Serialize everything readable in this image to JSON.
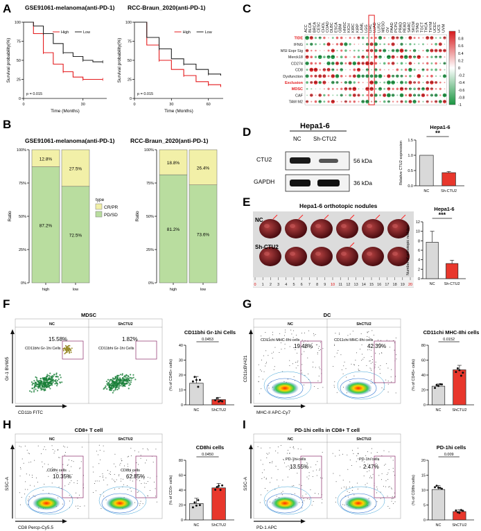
{
  "panels": {
    "A": {
      "letter": "A",
      "left_title": "GSE91061-melanoma(anti-PD-1)",
      "right_title": "RCC-Braun_2020(anti-PD-1)",
      "ylabel": "Survival probability(%)",
      "xlabel": "Time (Months)",
      "pval": "p = 0.015",
      "legend_high": "High",
      "legend_low": "Low",
      "left_yticks": [
        "100",
        "75",
        "50",
        "25",
        "0"
      ],
      "left_xticks": [
        "0",
        "30"
      ],
      "right_yticks": [
        "100",
        "75",
        "50",
        "25",
        "0"
      ],
      "right_xticks": [
        "0",
        "30",
        "60"
      ]
    },
    "B": {
      "letter": "B",
      "left_title": "GSE91061-melanoma(anti-PD-1)",
      "right_title": "RCC-Braun_2020(anti-PD-1)",
      "ylabel": "Ratio",
      "yticks": [
        "100%",
        "75%",
        "50%",
        "25%",
        "0%"
      ],
      "legend_title": "type",
      "legend_items": [
        "CR/PR",
        "PD/SD"
      ],
      "xcats": [
        "high",
        "low"
      ],
      "left_top": [
        "12.8%",
        "27.5%"
      ],
      "left_bottom": [
        "87.2%",
        "72.5%"
      ],
      "right_top": [
        "18.8%",
        "26.4%"
      ],
      "right_bottom": [
        "81.2%",
        "73.6%"
      ]
    },
    "C": {
      "letter": "C",
      "columns": [
        "ACC",
        "BLCA",
        "BRCA",
        "CESC",
        "CHOL",
        "COAD",
        "DLBC",
        "ESCA",
        "GBM",
        "HNSC",
        "KICH",
        "KIRC",
        "KIRP",
        "LAML",
        "LGG",
        "LIHC",
        "LUAD",
        "LUSC",
        "MESO",
        "OV",
        "PAAD",
        "PCPG",
        "PRAD",
        "READ",
        "SARC",
        "SKCM",
        "STAD",
        "TGCT",
        "THCA",
        "THYM",
        "UCEC",
        "UCS",
        "UVM"
      ],
      "rows": [
        "TIDE",
        "IFNG",
        "MSI Expr Sig",
        "Merck18",
        "CD274",
        "CD8",
        "Dysfunction",
        "Exclusion",
        "MDSC",
        "CAF",
        "TAM M2"
      ],
      "scale": [
        "1",
        "0.8",
        "0.6",
        "0.4",
        "0.2",
        "0",
        "-0.2",
        "-0.4",
        "-0.6",
        "-0.8",
        "-1"
      ],
      "colors": {
        "pos": "#d7191c",
        "neg": "#1a9641",
        "highlight": "#e31a1c"
      }
    },
    "D": {
      "letter": "D",
      "cell_line": "Hepa1-6",
      "lanes": [
        "NC",
        "Sh-CTU2"
      ],
      "bands": [
        "CTU2",
        "GAPDH"
      ],
      "kdas": [
        "56 kDa",
        "36 kDa"
      ],
      "bar_title": "Hepa1-6",
      "ylabel": "Relative CTU2 expression",
      "yticks": [
        "0.0",
        "0.5",
        "1.0",
        "1.5"
      ],
      "xcats": [
        "NC",
        "Sh-CTU2"
      ],
      "sig": "**"
    },
    "E": {
      "letter": "E",
      "photo_title": "Hepa1-6 orthotopic nodules",
      "row_labels": [
        "NC",
        "Sh-CTU2"
      ],
      "ruler": [
        "0",
        "1",
        "2",
        "3",
        "4",
        "5",
        "6",
        "7",
        "8",
        "9",
        "10",
        "11",
        "12",
        "13",
        "14",
        "15",
        "16",
        "17",
        "18",
        "19",
        "20"
      ],
      "bar_title": "Hepa1-6",
      "ylabel": "Number of orthotopic nodules",
      "yticks": [
        "0",
        "2",
        "4",
        "6",
        "8",
        "10",
        "12"
      ],
      "xcats": [
        "NC",
        "Sh-CTU2"
      ],
      "sig": "***"
    },
    "F": {
      "letter": "F",
      "header": "MDSC",
      "groups": [
        "NC",
        "ShCTU2"
      ],
      "pcts": [
        "15.58%",
        "1.82%"
      ],
      "gate": "CD11b⁺ʰⁱ Gr-1ʰⁱ Cells",
      "gate_label": "CD11bhi Gr-1hi Cells",
      "yaxis": "Gr-1 BV605",
      "xaxis": "CD11b FITC",
      "bar_title": "CD11bhi Gr-1hi Cells",
      "ylabel": "(% of CD45+ cells)",
      "yticks": [
        "0",
        "10",
        "20",
        "30",
        "40"
      ],
      "pval": "0.0453",
      "xcats": [
        "NC",
        "ShCTU2"
      ]
    },
    "G": {
      "letter": "G",
      "header": "DC",
      "groups": [
        "NC",
        "ShCTU2"
      ],
      "pcts": [
        "19.48%",
        "42.39%"
      ],
      "gate_label": "CD11chi MHC-IIhi cells",
      "yaxis": "CD11cBV421",
      "xaxis": "MHC-II APC-Cy7",
      "bar_title": "CD11chi MHC-IIhi cells",
      "ylabel": "(% of CD45+ cells)",
      "yticks": [
        "0",
        "20",
        "40",
        "60",
        "80"
      ],
      "pval": "0.0152",
      "xcats": [
        "NC",
        "ShCTU2"
      ]
    },
    "H": {
      "letter": "H",
      "header": "CD8+ T cell",
      "groups": [
        "NC",
        "ShCTU2"
      ],
      "pcts": [
        "10.35%",
        "62.85%"
      ],
      "gate_label": "CD8hi cells",
      "yaxis": "SSC-A",
      "xaxis": "CD8 Percp-Cy5.5",
      "bar_title": "CD8hi cells",
      "ylabel": "(% of CD3+ cells)",
      "yticks": [
        "0",
        "20",
        "40",
        "60",
        "80"
      ],
      "pval": "0.0450",
      "xcats": [
        "NC",
        "ShCTU2"
      ]
    },
    "I": {
      "letter": "I",
      "header": "PD-1hi cells in CD8+ T cell",
      "groups": [
        "NC",
        "ShCTU2"
      ],
      "pcts": [
        "13.55%",
        "2.47%"
      ],
      "gate_label": "PD-1hi cells",
      "yaxis": "SSC-A",
      "xaxis": "PD-1 APC",
      "bar_title": "PD-1hi cells",
      "ylabel": "(% of CD8hi cells)",
      "yticks": [
        "0",
        "5",
        "10",
        "15",
        "20"
      ],
      "pval": "0.009",
      "xcats": [
        "NC",
        "ShCTU2"
      ]
    }
  },
  "chart_data": [
    {
      "type": "bar",
      "panel": "D",
      "title": "Hepa1-6",
      "categories": [
        "NC",
        "Sh-CTU2"
      ],
      "values": [
        1.0,
        0.43
      ],
      "errors": [
        0,
        0.04
      ],
      "ylabel": "Relative CTU2 expression",
      "ylim": [
        0,
        1.5
      ]
    },
    {
      "type": "bar",
      "panel": "E",
      "title": "Hepa1-6",
      "categories": [
        "NC",
        "Sh-CTU2"
      ],
      "values": [
        7.7,
        3.2
      ],
      "errors": [
        2.3,
        0.7
      ],
      "ylabel": "Number of orthotopic nodules",
      "ylim": [
        0,
        12
      ]
    },
    {
      "type": "bar",
      "panel": "F",
      "title": "CD11bhi Gr-1hi Cells",
      "categories": [
        "NC",
        "ShCTU2"
      ],
      "values": [
        14.5,
        3.5
      ],
      "errors": [
        4.5,
        1.5
      ],
      "ylabel": "(% of CD45+ cells)",
      "ylim": [
        0,
        40
      ]
    },
    {
      "type": "bar",
      "panel": "G",
      "title": "CD11chi MHC-IIhi cells",
      "categories": [
        "NC",
        "ShCTU2"
      ],
      "values": [
        25,
        47
      ],
      "errors": [
        3,
        6
      ],
      "ylabel": "(% of CD45+ cells)",
      "ylim": [
        0,
        80
      ]
    },
    {
      "type": "bar",
      "panel": "H",
      "title": "CD8hi cells",
      "categories": [
        "NC",
        "ShCTU2"
      ],
      "values": [
        22,
        43
      ],
      "errors": [
        7,
        6
      ],
      "ylabel": "(% of CD3+ cells)",
      "ylim": [
        0,
        80
      ]
    },
    {
      "type": "bar",
      "panel": "I",
      "title": "PD-1hi cells",
      "categories": [
        "NC",
        "ShCTU2"
      ],
      "values": [
        10.2,
        2.8
      ],
      "errors": [
        1.3,
        0.6
      ],
      "ylabel": "(% of CD8hi cells)",
      "ylim": [
        0,
        20
      ]
    },
    {
      "type": "bar",
      "panel": "B-left",
      "title": "GSE91061-melanoma(anti-PD-1)",
      "categories": [
        "high",
        "low"
      ],
      "series": [
        {
          "name": "CR/PR",
          "values": [
            12.8,
            27.5
          ]
        },
        {
          "name": "PD/SD",
          "values": [
            87.2,
            72.5
          ]
        }
      ],
      "ylabel": "Ratio"
    },
    {
      "type": "bar",
      "panel": "B-right",
      "title": "RCC-Braun_2020(anti-PD-1)",
      "categories": [
        "high",
        "low"
      ],
      "series": [
        {
          "name": "CR/PR",
          "values": [
            18.8,
            26.4
          ]
        },
        {
          "name": "PD/SD",
          "values": [
            81.2,
            73.6
          ]
        }
      ],
      "ylabel": "Ratio"
    },
    {
      "type": "line",
      "panel": "A-left",
      "title": "GSE91061-melanoma(anti-PD-1)",
      "x": [
        0,
        5,
        10,
        15,
        20,
        25,
        30,
        35,
        40
      ],
      "series": [
        {
          "name": "High",
          "values": [
            100,
            85,
            60,
            45,
            35,
            28,
            25,
            25,
            25
          ]
        },
        {
          "name": "Low",
          "values": [
            100,
            95,
            85,
            72,
            60,
            55,
            50,
            48,
            48
          ]
        }
      ],
      "xlabel": "Time (Months)",
      "ylabel": "Survival probability(%)"
    },
    {
      "type": "line",
      "panel": "A-right",
      "title": "RCC-Braun_2020(anti-PD-1)",
      "x": [
        0,
        10,
        20,
        30,
        40,
        50,
        60,
        70
      ],
      "series": [
        {
          "name": "High",
          "values": [
            100,
            70,
            50,
            38,
            30,
            22,
            18,
            15
          ]
        },
        {
          "name": "Low",
          "values": [
            100,
            80,
            65,
            52,
            45,
            38,
            32,
            30
          ]
        }
      ],
      "xlabel": "Time (Months)",
      "ylabel": "Survival probability(%)"
    }
  ]
}
